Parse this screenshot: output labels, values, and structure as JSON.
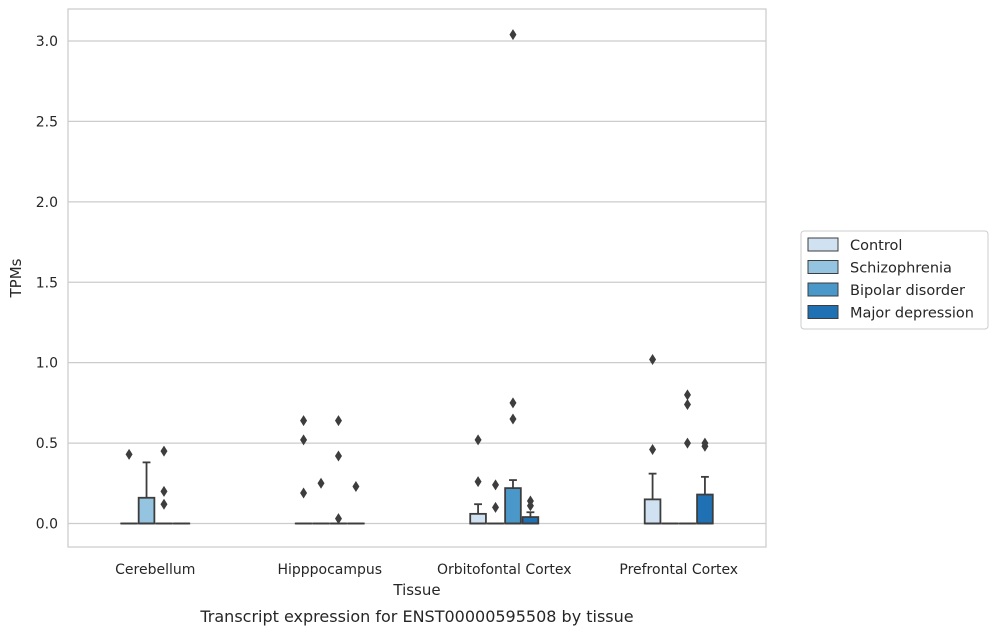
{
  "chart_data": {
    "type": "box",
    "xlabel": "Tissue",
    "ylabel": "TPMs",
    "caption": "Transcript expression for ENST00000595508 by tissue",
    "ylim": [
      -0.15,
      3.2
    ],
    "yticks": [
      0.0,
      0.5,
      1.0,
      1.5,
      2.0,
      2.5,
      3.0
    ],
    "ytick_labels": [
      "0.0",
      "0.5",
      "1.0",
      "1.5",
      "2.0",
      "2.5",
      "3.0"
    ],
    "grid": "horizontal",
    "legend_position": "right",
    "categories": [
      "Cerebellum",
      "Hipppocampus",
      "Orbitofontal Cortex",
      "Prefrontal Cortex"
    ],
    "series": [
      {
        "name": "Control",
        "color": "#d0e1f2",
        "boxes": [
          {
            "q1": 0.0,
            "median": 0.0,
            "q3": 0.0,
            "whislo": 0.0,
            "whishi": 0.0,
            "fliers": [
              0.43
            ]
          },
          {
            "q1": 0.0,
            "median": 0.0,
            "q3": 0.0,
            "whislo": 0.0,
            "whishi": 0.0,
            "fliers": [
              0.64,
              0.52,
              0.19
            ]
          },
          {
            "q1": 0.0,
            "median": 0.0,
            "q3": 0.06,
            "whislo": 0.0,
            "whishi": 0.12,
            "fliers": [
              0.52,
              0.26
            ]
          },
          {
            "q1": 0.0,
            "median": 0.0,
            "q3": 0.15,
            "whislo": 0.0,
            "whishi": 0.31,
            "fliers": [
              1.02,
              0.46
            ]
          }
        ]
      },
      {
        "name": "Schizophrenia",
        "color": "#94c4df",
        "boxes": [
          {
            "q1": 0.0,
            "median": 0.0,
            "q3": 0.16,
            "whislo": 0.0,
            "whishi": 0.38,
            "fliers": []
          },
          {
            "q1": 0.0,
            "median": 0.0,
            "q3": 0.0,
            "whislo": 0.0,
            "whishi": 0.0,
            "fliers": [
              0.25
            ]
          },
          {
            "q1": 0.0,
            "median": 0.0,
            "q3": 0.0,
            "whislo": 0.0,
            "whishi": 0.0,
            "fliers": [
              0.24,
              0.1
            ]
          },
          {
            "q1": 0.0,
            "median": 0.0,
            "q3": 0.0,
            "whislo": 0.0,
            "whishi": 0.0,
            "fliers": []
          }
        ]
      },
      {
        "name": "Bipolar disorder",
        "color": "#4a98c9",
        "boxes": [
          {
            "q1": 0.0,
            "median": 0.0,
            "q3": 0.0,
            "whislo": 0.0,
            "whishi": 0.0,
            "fliers": [
              0.45,
              0.2,
              0.12
            ]
          },
          {
            "q1": 0.0,
            "median": 0.0,
            "q3": 0.0,
            "whislo": 0.0,
            "whishi": 0.0,
            "fliers": [
              0.64,
              0.42,
              0.03
            ]
          },
          {
            "q1": 0.0,
            "median": 0.0,
            "q3": 0.22,
            "whislo": 0.0,
            "whishi": 0.27,
            "fliers": [
              3.04,
              0.75,
              0.65
            ]
          },
          {
            "q1": 0.0,
            "median": 0.0,
            "q3": 0.0,
            "whislo": 0.0,
            "whishi": 0.0,
            "fliers": [
              0.8,
              0.74,
              0.5
            ]
          }
        ]
      },
      {
        "name": "Major depression",
        "color": "#2070b4",
        "boxes": [
          {
            "q1": 0.0,
            "median": 0.0,
            "q3": 0.0,
            "whislo": 0.0,
            "whishi": 0.0,
            "fliers": []
          },
          {
            "q1": 0.0,
            "median": 0.0,
            "q3": 0.0,
            "whislo": 0.0,
            "whishi": 0.0,
            "fliers": [
              0.23
            ]
          },
          {
            "q1": 0.0,
            "median": 0.0,
            "q3": 0.04,
            "whislo": 0.0,
            "whishi": 0.07,
            "fliers": [
              0.14,
              0.11
            ]
          },
          {
            "q1": 0.0,
            "median": 0.0,
            "q3": 0.18,
            "whislo": 0.0,
            "whishi": 0.29,
            "fliers": [
              0.5,
              0.48
            ]
          }
        ]
      }
    ]
  }
}
